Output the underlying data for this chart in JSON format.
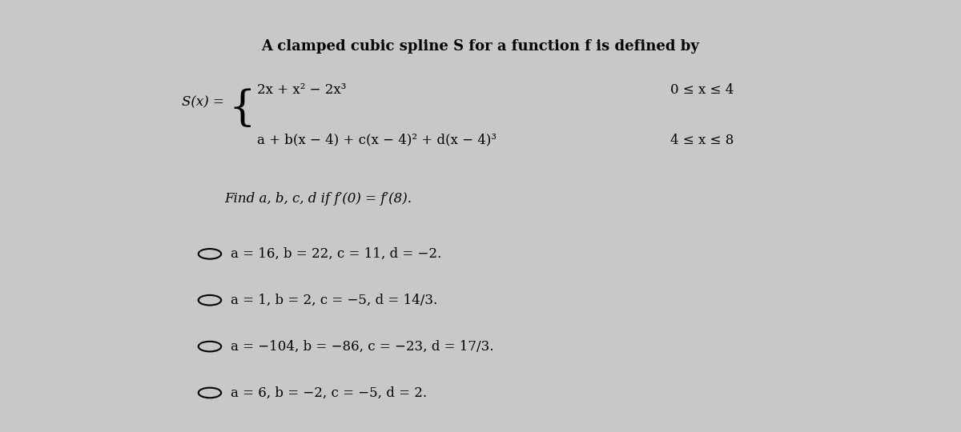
{
  "bg_color": "#c8c8c8",
  "title_line": "A clamped cubic spline S for a function f is defined by",
  "spline_label": "S(x) =",
  "piece1": "2x + x² − 2x³",
  "piece1_domain": "0 ≤ x ≤ 4",
  "piece2": "a + b(x − 4) + c(x − 4)² + d(x − 4)³",
  "piece2_domain": "4 ≤ x ≤ 8",
  "question": "Find a, b, c, d if f′(0) = f′(8).",
  "options": [
    "a = 16, b = 22, c = 11, d = −2.",
    "a = 1, b = 2, c = −5, d = 14/3.",
    "a = −104, b = −86, c = −23, d = 17/3.",
    "a = 6, b = −2, c = −5, d = 2."
  ],
  "title_fontsize": 13,
  "body_fontsize": 12,
  "option_fontsize": 12
}
